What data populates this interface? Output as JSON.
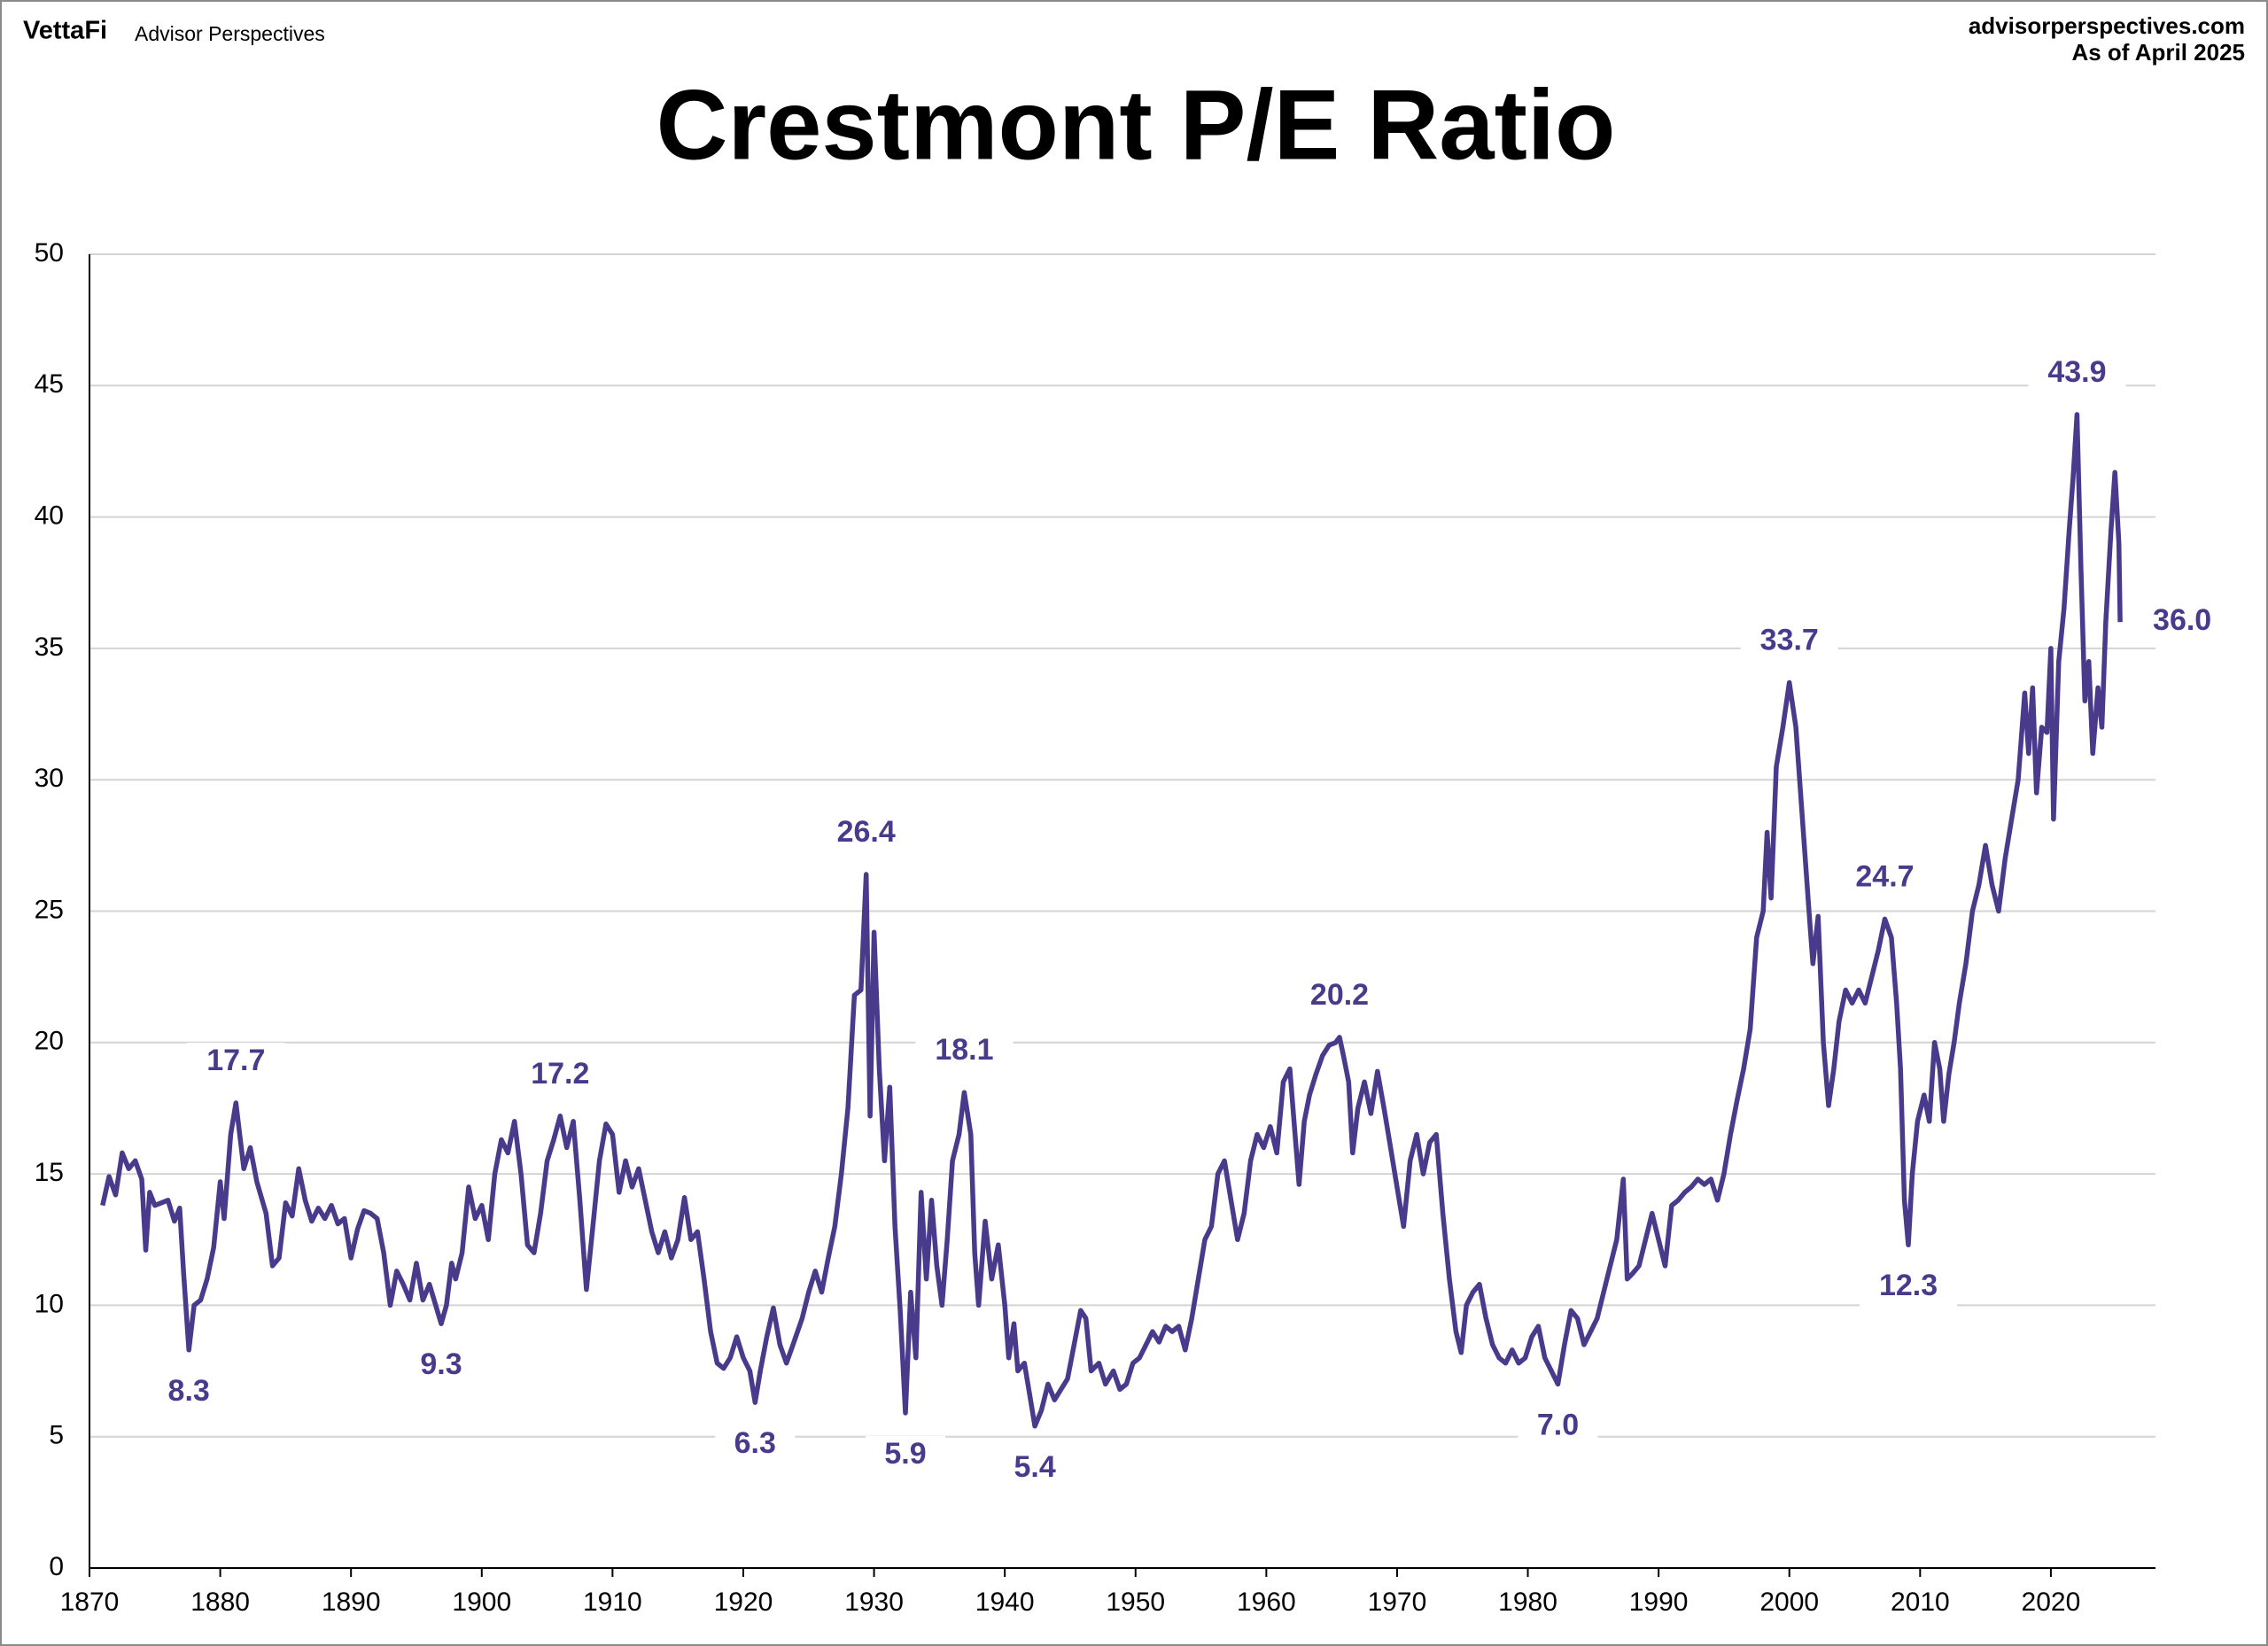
{
  "brand": "VettaFi",
  "brand_sub": "Advisor Perspectives",
  "source": "advisorperspectives.com",
  "as_of": "As of April 2025",
  "chart_data": {
    "type": "line",
    "title": "Crestmont P/E Ratio",
    "color": "#4a3a8c",
    "x": [
      1871,
      1871.5,
      1872,
      1872.5,
      1873,
      1873.5,
      1874,
      1874.3,
      1874.6,
      1875,
      1876,
      1876.5,
      1876.9,
      1877.2,
      1877.6,
      1878,
      1878.5,
      1879,
      1879.5,
      1880,
      1880.3,
      1880.8,
      1881.2,
      1881.8,
      1882.3,
      1882.8,
      1883.5,
      1884,
      1884.5,
      1885,
      1885.5,
      1886,
      1886.5,
      1887,
      1887.5,
      1888,
      1888.5,
      1889,
      1889.5,
      1890,
      1890.5,
      1891,
      1891.5,
      1892,
      1892.5,
      1893,
      1893.5,
      1894,
      1894.5,
      1895,
      1895.5,
      1896,
      1896.9,
      1897.3,
      1897.7,
      1898,
      1898.5,
      1899,
      1899.5,
      1900,
      1900.5,
      1901,
      1901.5,
      1902,
      1902.5,
      1903,
      1903.5,
      1904,
      1904.5,
      1905,
      1905.5,
      1906,
      1906.5,
      1907,
      1907.5,
      1908,
      1908.5,
      1909,
      1909.5,
      1910,
      1910.5,
      1911,
      1911.5,
      1912,
      1912.5,
      1913,
      1913.5,
      1914,
      1914.5,
      1915,
      1915.5,
      1916,
      1916.5,
      1917,
      1917.5,
      1918,
      1918.5,
      1919,
      1919.5,
      1920,
      1920.5,
      1920.9,
      1921.3,
      1921.8,
      1922.3,
      1922.8,
      1923.3,
      1923.8,
      1924.5,
      1925,
      1925.5,
      1926,
      1926.5,
      1927,
      1927.5,
      1928,
      1928.5,
      1929,
      1929.4,
      1929.7,
      1930,
      1930.4,
      1930.8,
      1931.2,
      1931.6,
      1932,
      1932.4,
      1932.8,
      1933.2,
      1933.6,
      1934,
      1934.4,
      1934.8,
      1935.2,
      1935.6,
      1936,
      1936.5,
      1936.9,
      1937.4,
      1937.7,
      1938,
      1938.5,
      1939,
      1939.5,
      1940,
      1940.3,
      1940.7,
      1941,
      1941.5,
      1942,
      1942.3,
      1942.8,
      1943.3,
      1943.8,
      1944.3,
      1944.8,
      1945.3,
      1945.8,
      1946.2,
      1946.6,
      1947.2,
      1947.7,
      1948.3,
      1948.8,
      1949.3,
      1949.8,
      1950.3,
      1950.8,
      1951.3,
      1951.8,
      1952.3,
      1952.8,
      1953.3,
      1953.8,
      1954.3,
      1954.8,
      1955.3,
      1955.8,
      1956.3,
      1956.8,
      1957.3,
      1957.8,
      1958.3,
      1958.8,
      1959.3,
      1959.8,
      1960.3,
      1960.8,
      1961.3,
      1961.8,
      1962.2,
      1962.5,
      1962.9,
      1963.3,
      1963.8,
      1964.3,
      1964.8,
      1965.3,
      1965.6,
      1965.9,
      1966.3,
      1966.6,
      1967,
      1967.5,
      1968,
      1968.5,
      1969,
      1969.5,
      1970,
      1970.5,
      1971,
      1971.5,
      1972,
      1972.5,
      1973,
      1973.5,
      1974,
      1974.5,
      1974.9,
      1975.3,
      1975.8,
      1976.3,
      1976.8,
      1977.3,
      1977.8,
      1978.3,
      1978.8,
      1979.3,
      1979.8,
      1980.3,
      1980.8,
      1981.3,
      1981.8,
      1982.3,
      1982.8,
      1983.3,
      1983.8,
      1984.3,
      1984.8,
      1985.3,
      1985.8,
      1986.3,
      1986.8,
      1987.3,
      1987.6,
      1988,
      1988.5,
      1989,
      1989.5,
      1990,
      1990.5,
      1991,
      1991.5,
      1992,
      1992.5,
      1993,
      1993.5,
      1994,
      1994.5,
      1995,
      1995.5,
      1996,
      1996.5,
      1997,
      1997.5,
      1998,
      1998.3,
      1998.6,
      1999,
      1999.5,
      2000,
      2000.5,
      2001,
      2001.5,
      2001.8,
      2002.2,
      2002.6,
      2003,
      2003.4,
      2003.8,
      2004.3,
      2004.8,
      2005.3,
      2005.8,
      2006.3,
      2006.8,
      2007.3,
      2007.8,
      2008.2,
      2008.5,
      2008.8,
      2009.1,
      2009.4,
      2009.8,
      2010.3,
      2010.7,
      2011.1,
      2011.5,
      2011.8,
      2012.2,
      2012.6,
      2013,
      2013.5,
      2014,
      2014.5,
      2015,
      2015.5,
      2016,
      2016.5,
      2017,
      2017.5,
      2018,
      2018.3,
      2018.6,
      2018.9,
      2019.3,
      2019.7,
      2020,
      2020.2,
      2020.6,
      2021,
      2021.4,
      2021.7,
      2022,
      2022.3,
      2022.6,
      2022.9,
      2023.2,
      2023.6,
      2023.9,
      2024.2,
      2024.6,
      2024.9,
      2025.2,
      2025.3
    ],
    "values": [
      13.8,
      14.9,
      14.2,
      15.8,
      15.2,
      15.5,
      14.8,
      12.1,
      14.3,
      13.8,
      14.0,
      13.2,
      13.7,
      11.2,
      8.3,
      10.0,
      10.2,
      11.0,
      12.2,
      14.7,
      13.3,
      16.5,
      17.7,
      15.2,
      16.0,
      14.7,
      13.5,
      11.5,
      11.8,
      13.9,
      13.4,
      15.2,
      14.0,
      13.2,
      13.7,
      13.3,
      13.8,
      13.1,
      13.3,
      11.8,
      12.9,
      13.6,
      13.5,
      13.3,
      12.0,
      10.0,
      11.3,
      10.8,
      10.2,
      11.6,
      10.2,
      10.8,
      9.3,
      10.0,
      11.6,
      11.0,
      12.0,
      14.5,
      13.3,
      13.8,
      12.5,
      15.0,
      16.3,
      15.8,
      17.0,
      15.0,
      12.3,
      12.0,
      13.5,
      15.5,
      16.3,
      17.2,
      16.0,
      17.0,
      14.0,
      10.6,
      13.0,
      15.5,
      16.9,
      16.5,
      14.3,
      15.5,
      14.5,
      15.2,
      14.0,
      12.8,
      12.0,
      12.8,
      11.8,
      12.5,
      14.1,
      12.5,
      12.8,
      11.0,
      9.0,
      7.8,
      7.6,
      8.0,
      8.8,
      8.0,
      7.5,
      6.3,
      7.5,
      8.8,
      9.9,
      8.5,
      7.8,
      8.5,
      9.5,
      10.5,
      11.3,
      10.5,
      11.8,
      13.0,
      15.0,
      17.5,
      21.8,
      22.0,
      26.4,
      17.2,
      24.2,
      19.0,
      15.5,
      18.3,
      13.0,
      9.8,
      5.9,
      10.5,
      8.0,
      14.3,
      11.0,
      14.0,
      11.5,
      10.0,
      12.5,
      15.5,
      16.5,
      18.1,
      16.5,
      12.0,
      10.0,
      13.2,
      11.0,
      12.3,
      10.0,
      8.0,
      9.3,
      7.5,
      7.8,
      6.3,
      5.4,
      6.0,
      7.0,
      6.4,
      6.8,
      7.2,
      8.5,
      9.8,
      9.5,
      7.5,
      7.8,
      7.0,
      7.5,
      6.8,
      7.0,
      7.8,
      8.0,
      8.5,
      9.0,
      8.6,
      9.2,
      9.0,
      9.2,
      8.3,
      9.5,
      11.0,
      12.5,
      13.0,
      15.0,
      15.5,
      14.0,
      12.5,
      13.5,
      15.5,
      16.5,
      16.0,
      16.8,
      15.8,
      18.5,
      19.0,
      16.5,
      14.6,
      17.0,
      18.0,
      18.8,
      19.5,
      19.9,
      20.0,
      20.2,
      19.5,
      18.5,
      15.8,
      17.5,
      18.5,
      17.3,
      18.9,
      17.5,
      16.0,
      14.5,
      13.0,
      15.5,
      16.5,
      15.0,
      16.2,
      16.5,
      13.5,
      11.0,
      9.0,
      8.2,
      10.0,
      10.5,
      10.8,
      9.5,
      8.5,
      8.0,
      7.8,
      8.3,
      7.8,
      8.0,
      8.8,
      9.2,
      8.0,
      7.5,
      7.0,
      8.5,
      9.8,
      9.5,
      8.5,
      9.0,
      9.5,
      10.5,
      11.5,
      12.5,
      14.8,
      11.0,
      11.2,
      11.5,
      12.5,
      13.5,
      12.5,
      11.5,
      13.8,
      14.0,
      14.3,
      14.5,
      14.8,
      14.6,
      14.8,
      14.0,
      15.0,
      16.5,
      17.8,
      19.0,
      20.5,
      24.0,
      25.0,
      28.0,
      25.5,
      30.5,
      32.0,
      33.7,
      32.0,
      28.5,
      25.0,
      23.0,
      24.8,
      20.0,
      17.6,
      19.0,
      20.8,
      22.0,
      21.5,
      22.0,
      21.5,
      22.5,
      23.5,
      24.7,
      24.0,
      21.5,
      19.0,
      14.0,
      12.3,
      15.0,
      17.0,
      18.0,
      17.0,
      20.0,
      19.0,
      17.0,
      18.8,
      20.0,
      21.5,
      23.0,
      25.0,
      26.0,
      27.5,
      26.0,
      25.0,
      27.0,
      28.5,
      30.0,
      33.3,
      31.0,
      33.5,
      29.5,
      32.0,
      31.8,
      35.0,
      28.5,
      34.5,
      36.5,
      39.5,
      41.5,
      43.9,
      38.0,
      33.0,
      34.5,
      31.0,
      33.5,
      32.0,
      36.0,
      39.5,
      41.7,
      39.0,
      36.0
    ],
    "annotations": [
      {
        "x": 1881.2,
        "y": 17.7,
        "label": "17.7"
      },
      {
        "x": 1877.6,
        "y": 8.3,
        "label": "8.3"
      },
      {
        "x": 1906,
        "y": 17.2,
        "label": "17.2"
      },
      {
        "x": 1896.9,
        "y": 9.3,
        "label": "9.3"
      },
      {
        "x": 1929.4,
        "y": 26.4,
        "label": "26.4"
      },
      {
        "x": 1920.9,
        "y": 6.3,
        "label": "6.3"
      },
      {
        "x": 1932.4,
        "y": 5.9,
        "label": "5.9"
      },
      {
        "x": 1936.9,
        "y": 18.1,
        "label": "18.1"
      },
      {
        "x": 1942.3,
        "y": 5.4,
        "label": "5.4"
      },
      {
        "x": 1965.6,
        "y": 20.2,
        "label": "20.2"
      },
      {
        "x": 1982.3,
        "y": 7.0,
        "label": "7.0"
      },
      {
        "x": 2000,
        "y": 33.7,
        "label": "33.7"
      },
      {
        "x": 2007.3,
        "y": 24.7,
        "label": "24.7"
      },
      {
        "x": 2009.1,
        "y": 12.3,
        "label": "12.3"
      },
      {
        "x": 2022,
        "y": 43.9,
        "label": "43.9"
      },
      {
        "x": 2025.3,
        "y": 36.0,
        "label": "36.0"
      }
    ],
    "xlim": [
      1870,
      2028
    ],
    "xticks": [
      1870,
      1880,
      1890,
      1900,
      1910,
      1920,
      1930,
      1940,
      1950,
      1960,
      1970,
      1980,
      1990,
      2000,
      2010,
      2020
    ],
    "ylim": [
      0,
      50
    ],
    "yticks": [
      0,
      5,
      10,
      15,
      20,
      25,
      30,
      35,
      40,
      45,
      50
    ],
    "grid": true
  }
}
